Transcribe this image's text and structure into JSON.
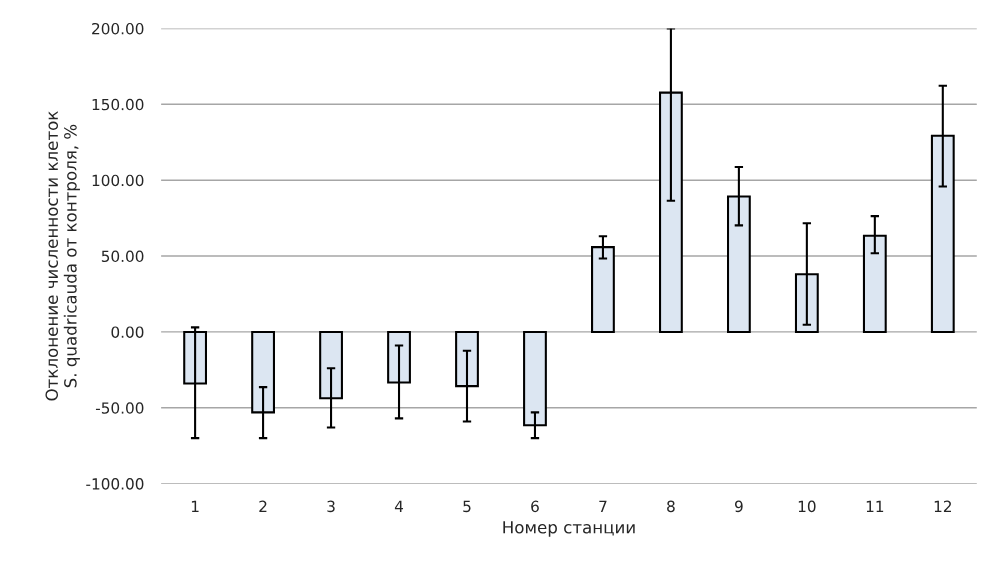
{
  "chart_data": {
    "type": "bar",
    "xlabel": "Номер станции",
    "ylabel": "Отклонение численности клеток S. quadricauda от контроля, %",
    "categories": [
      "1",
      "2",
      "3",
      "4",
      "5",
      "6",
      "7",
      "8",
      "9",
      "10",
      "11",
      "12"
    ],
    "values": [
      -34,
      -53,
      -43.7,
      -33.3,
      -35.7,
      -61.5,
      55.9,
      157.7,
      89.2,
      38,
      63.4,
      129.3
    ],
    "errors": [
      [
        -70,
        3
      ],
      [
        -70,
        -36.4
      ],
      [
        -63,
        -24
      ],
      [
        -57,
        -9
      ],
      [
        -59,
        -12.4
      ],
      [
        -70,
        -53
      ],
      [
        48.4,
        63
      ],
      [
        86.4,
        200
      ],
      [
        70.2,
        108.7
      ],
      [
        4.7,
        71.6
      ],
      [
        51.9,
        76.3
      ],
      [
        95.8,
        162.2
      ]
    ],
    "color": "#dce6f2",
    "ylim": [
      -100,
      200
    ],
    "yticks": [
      {
        "value": -100,
        "label": "-100.00"
      },
      {
        "value": -50,
        "label": "-50.00"
      },
      {
        "value": 0,
        "label": "0.00"
      },
      {
        "value": 50,
        "label": "50.00"
      },
      {
        "value": 100,
        "label": "100.00"
      },
      {
        "value": 150,
        "label": "150.00"
      },
      {
        "value": 200,
        "label": "200.00"
      }
    ],
    "grid": "y"
  }
}
